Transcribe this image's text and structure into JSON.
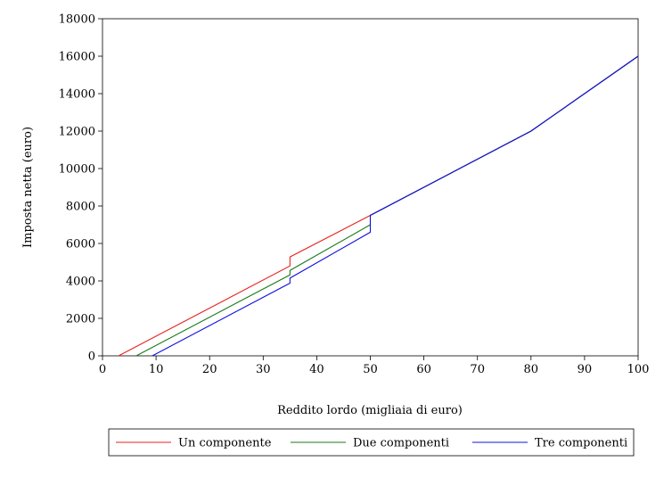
{
  "chart_data": {
    "type": "line",
    "title": "",
    "xlabel": "Reddito lordo (migliaia di euro)",
    "ylabel": "Imposta netta (euro)",
    "xlim": [
      0,
      100
    ],
    "ylim": [
      0,
      18000
    ],
    "x_ticks": [
      "0",
      "10",
      "20",
      "30",
      "40",
      "50",
      "60",
      "70",
      "80",
      "90",
      "100"
    ],
    "y_ticks": [
      "0",
      "2000",
      "4000",
      "6000",
      "8000",
      "10000",
      "12000",
      "14000",
      "16000",
      "18000"
    ],
    "grid": false,
    "legend_position": "bottom",
    "series": [
      {
        "name": "Un componente",
        "color": "#e8211b",
        "points": [
          [
            3,
            0
          ],
          [
            35,
            4800
          ],
          [
            35,
            5280
          ],
          [
            50,
            7500
          ],
          [
            80,
            12000
          ],
          [
            100,
            16000
          ]
        ]
      },
      {
        "name": "Due componenti",
        "color": "#1a7a1a",
        "points": [
          [
            6.3,
            0
          ],
          [
            35,
            4320
          ],
          [
            35,
            4560
          ],
          [
            50,
            7000
          ],
          [
            50,
            7500
          ],
          [
            80,
            12000
          ],
          [
            100,
            16000
          ]
        ]
      },
      {
        "name": "Tre componenti",
        "color": "#1010e0",
        "points": [
          [
            9.3,
            0
          ],
          [
            35,
            3880
          ],
          [
            35,
            4150
          ],
          [
            50,
            6600
          ],
          [
            50,
            7500
          ],
          [
            80,
            12000
          ],
          [
            100,
            16000
          ]
        ]
      }
    ]
  }
}
